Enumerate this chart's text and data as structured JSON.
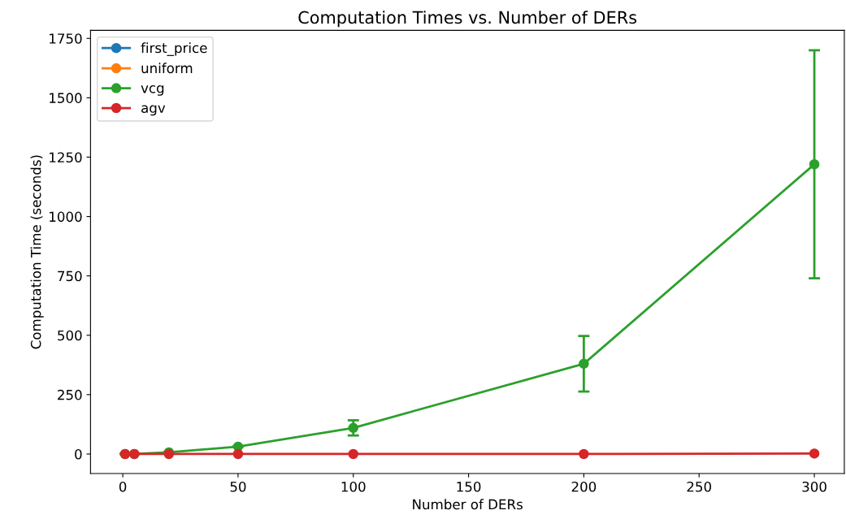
{
  "chart_data": {
    "type": "line",
    "title": "Computation Times vs. Number of DERs",
    "xlabel": "Number of DERs",
    "ylabel": "Computation Time (seconds)",
    "x": [
      1,
      5,
      20,
      50,
      100,
      200,
      300
    ],
    "series": [
      {
        "name": "first_price",
        "color": "#1f77b4",
        "values": [
          null,
          null,
          null,
          null,
          null,
          null,
          null
        ]
      },
      {
        "name": "uniform",
        "color": "#ff7f0e",
        "values": [
          null,
          null,
          null,
          null,
          null,
          null,
          null
        ]
      },
      {
        "name": "vcg",
        "color": "#2ca02c",
        "values": [
          0,
          0,
          7,
          31,
          110,
          380,
          1220
        ],
        "errors": [
          null,
          null,
          null,
          null,
          32,
          117,
          480
        ]
      },
      {
        "name": "agv",
        "color": "#d62728",
        "values": [
          0,
          0,
          0,
          0,
          0,
          0,
          2
        ]
      }
    ],
    "xlim": [
      -14,
      313
    ],
    "ylim": [
      -82,
      1784
    ],
    "xticks": [
      0,
      50,
      100,
      150,
      200,
      250,
      300
    ],
    "yticks": [
      0,
      250,
      500,
      750,
      1000,
      1250,
      1500,
      1750
    ],
    "marker": "circle",
    "line_style": "solid",
    "legend": "top left",
    "grid": false
  }
}
